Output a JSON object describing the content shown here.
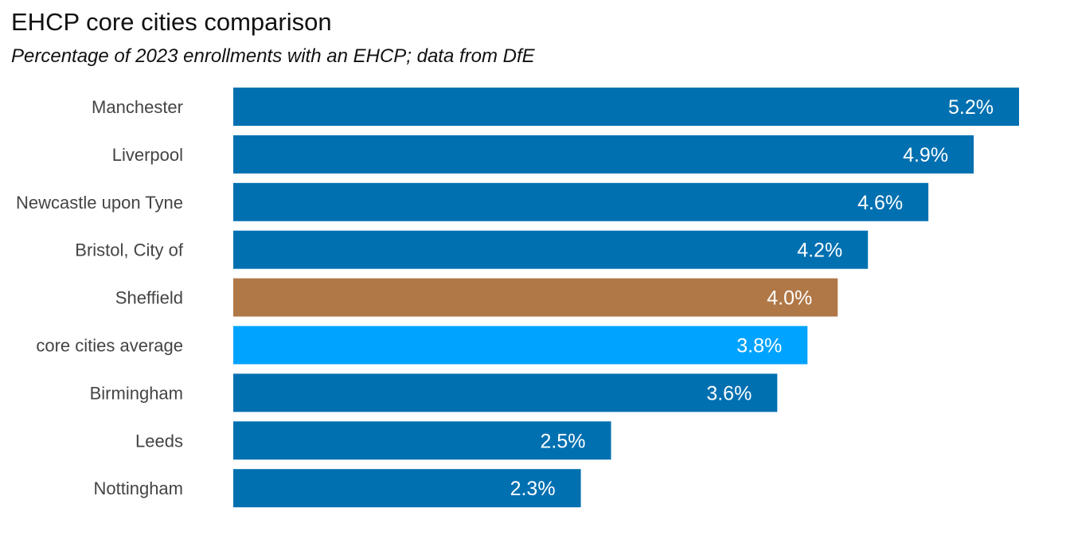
{
  "title": "EHCP core cities comparison",
  "subtitle": "Percentage of 2023 enrollments with an EHCP; data from DfE",
  "chart_data": {
    "type": "bar",
    "orientation": "horizontal",
    "title": "EHCP core cities comparison",
    "subtitle": "Percentage of 2023 enrollments with an EHCP; data from DfE",
    "categories": [
      "Manchester",
      "Liverpool",
      "Newcastle upon Tyne",
      "Bristol, City of",
      "Sheffield",
      "core cities average",
      "Birmingham",
      "Leeds",
      "Nottingham"
    ],
    "values": [
      5.2,
      4.9,
      4.6,
      4.2,
      4.0,
      3.8,
      3.6,
      2.5,
      2.3
    ],
    "value_labels": [
      "5.2%",
      "4.9%",
      "4.6%",
      "4.2%",
      "4.0%",
      "3.8%",
      "3.6%",
      "2.5%",
      "2.3%"
    ],
    "bar_colors": [
      "#0070b1",
      "#0070b1",
      "#0070b1",
      "#0070b1",
      "#b07847",
      "#00a3ff",
      "#0070b1",
      "#0070b1",
      "#0070b1"
    ],
    "xlim": [
      0,
      5.3
    ],
    "grid": false,
    "legend": "none"
  }
}
